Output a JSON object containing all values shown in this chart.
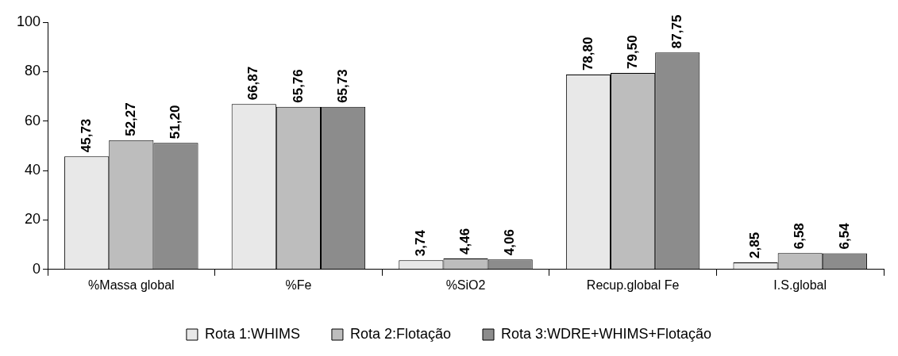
{
  "chart_data": {
    "type": "bar",
    "categories": [
      "%Massa global",
      "%Fe",
      "%SiO2",
      "Recup.global Fe",
      "I.S.global"
    ],
    "series": [
      {
        "name": "Rota 1:WHIMS",
        "color": "#e8e8e8",
        "values": [
          45.73,
          66.87,
          3.74,
          78.8,
          2.85
        ],
        "value_labels": [
          "45,73",
          "66,87",
          "3,74",
          "78,80",
          "2,85"
        ]
      },
      {
        "name": "Rota 2:Flotação",
        "color": "#bdbdbd",
        "values": [
          52.27,
          65.76,
          4.46,
          79.5,
          6.58
        ],
        "value_labels": [
          "52,27",
          "65,76",
          "4,46",
          "79,50",
          "6,58"
        ]
      },
      {
        "name": "Rota 3:WDRE+WHIMS+Flotação",
        "color": "#8c8c8c",
        "values": [
          51.2,
          65.73,
          4.06,
          87.75,
          6.54
        ],
        "value_labels": [
          "51,20",
          "65,73",
          "4,06",
          "87,75",
          "6,54"
        ]
      }
    ],
    "ylim": [
      0,
      100
    ],
    "yticks": [
      0,
      20,
      40,
      60,
      80,
      100
    ],
    "grid": false,
    "legend": "bottom"
  }
}
